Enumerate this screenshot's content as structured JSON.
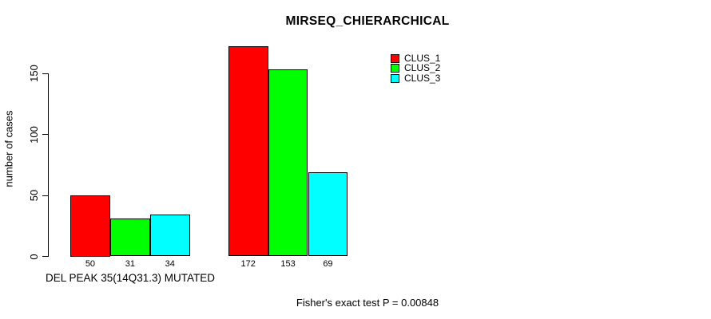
{
  "chart_data": {
    "type": "bar",
    "title": "MIRSEQ_CHIERARCHICAL",
    "ylabel": "number of cases",
    "xlabel": "DEL PEAK 35(14Q31.3) MUTATED",
    "annotation": "Fisher's exact test P = 0.00848",
    "categories": [
      "DEL PEAK 35(14Q31.3) MUTATED",
      ""
    ],
    "series": [
      {
        "name": "CLUS_1",
        "color": "#ff0000",
        "values": [
          50,
          172
        ]
      },
      {
        "name": "CLUS_2",
        "color": "#00ff00",
        "values": [
          31,
          153
        ]
      },
      {
        "name": "CLUS_3",
        "color": "#00ffff",
        "values": [
          34,
          69
        ]
      }
    ],
    "bar_value_labels": [
      [
        "50",
        "31",
        "34"
      ],
      [
        "172",
        "153",
        "69"
      ]
    ],
    "yticks": [
      0,
      50,
      100,
      150
    ],
    "ylim": [
      0,
      172
    ],
    "grid": false,
    "legend_position": "top-right",
    "axis_color": "#000000",
    "bar_border_color": "#000000",
    "background": "#ffffff"
  }
}
